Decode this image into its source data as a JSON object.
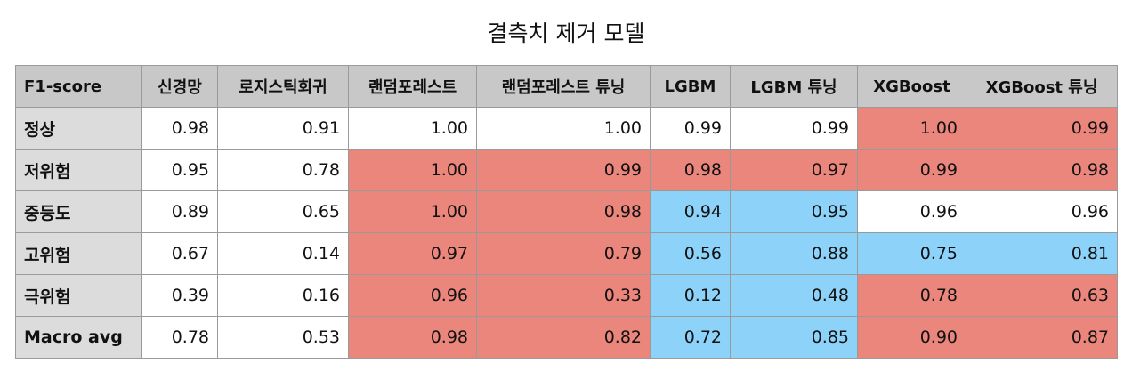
{
  "title": "결측치 제거 모델",
  "table": {
    "header": [
      "F1-score",
      "신경망",
      "로지스틱회귀",
      "랜덤포레스트",
      "랜덤포레스트 튜닝",
      "LGBM",
      "LGBM 튜닝",
      "XGBoost",
      "XGBoost 튜닝"
    ],
    "rows": [
      {
        "label": "정상",
        "values": [
          "0.98",
          "0.91",
          "1.00",
          "1.00",
          "0.99",
          "0.99",
          "1.00",
          "0.99"
        ],
        "highlight": [
          "",
          "",
          "",
          "",
          "",
          "",
          "red",
          "red"
        ]
      },
      {
        "label": "저위험",
        "values": [
          "0.95",
          "0.78",
          "1.00",
          "0.99",
          "0.98",
          "0.97",
          "0.99",
          "0.98"
        ],
        "highlight": [
          "",
          "",
          "red",
          "red",
          "red",
          "red",
          "red",
          "red"
        ]
      },
      {
        "label": "중등도",
        "values": [
          "0.89",
          "0.65",
          "1.00",
          "0.98",
          "0.94",
          "0.95",
          "0.96",
          "0.96"
        ],
        "highlight": [
          "",
          "",
          "red",
          "red",
          "blue",
          "blue",
          "",
          ""
        ]
      },
      {
        "label": "고위험",
        "values": [
          "0.67",
          "0.14",
          "0.97",
          "0.79",
          "0.56",
          "0.88",
          "0.75",
          "0.81"
        ],
        "highlight": [
          "",
          "",
          "red",
          "red",
          "blue",
          "blue",
          "blue",
          "blue"
        ]
      },
      {
        "label": "극위험",
        "values": [
          "0.39",
          "0.16",
          "0.96",
          "0.33",
          "0.12",
          "0.48",
          "0.78",
          "0.63"
        ],
        "highlight": [
          "",
          "",
          "red",
          "red",
          "blue",
          "blue",
          "red",
          "red"
        ]
      },
      {
        "label": "Macro avg",
        "values": [
          "0.78",
          "0.53",
          "0.98",
          "0.82",
          "0.72",
          "0.85",
          "0.90",
          "0.87"
        ],
        "highlight": [
          "",
          "",
          "red",
          "red",
          "blue",
          "blue",
          "red",
          "red"
        ]
      }
    ]
  },
  "colors": {
    "red_highlight": "#eb867c",
    "blue_highlight": "#8dd3f9",
    "header_bg": "#c8c8c8",
    "row_label_bg": "#dcdcdc"
  }
}
